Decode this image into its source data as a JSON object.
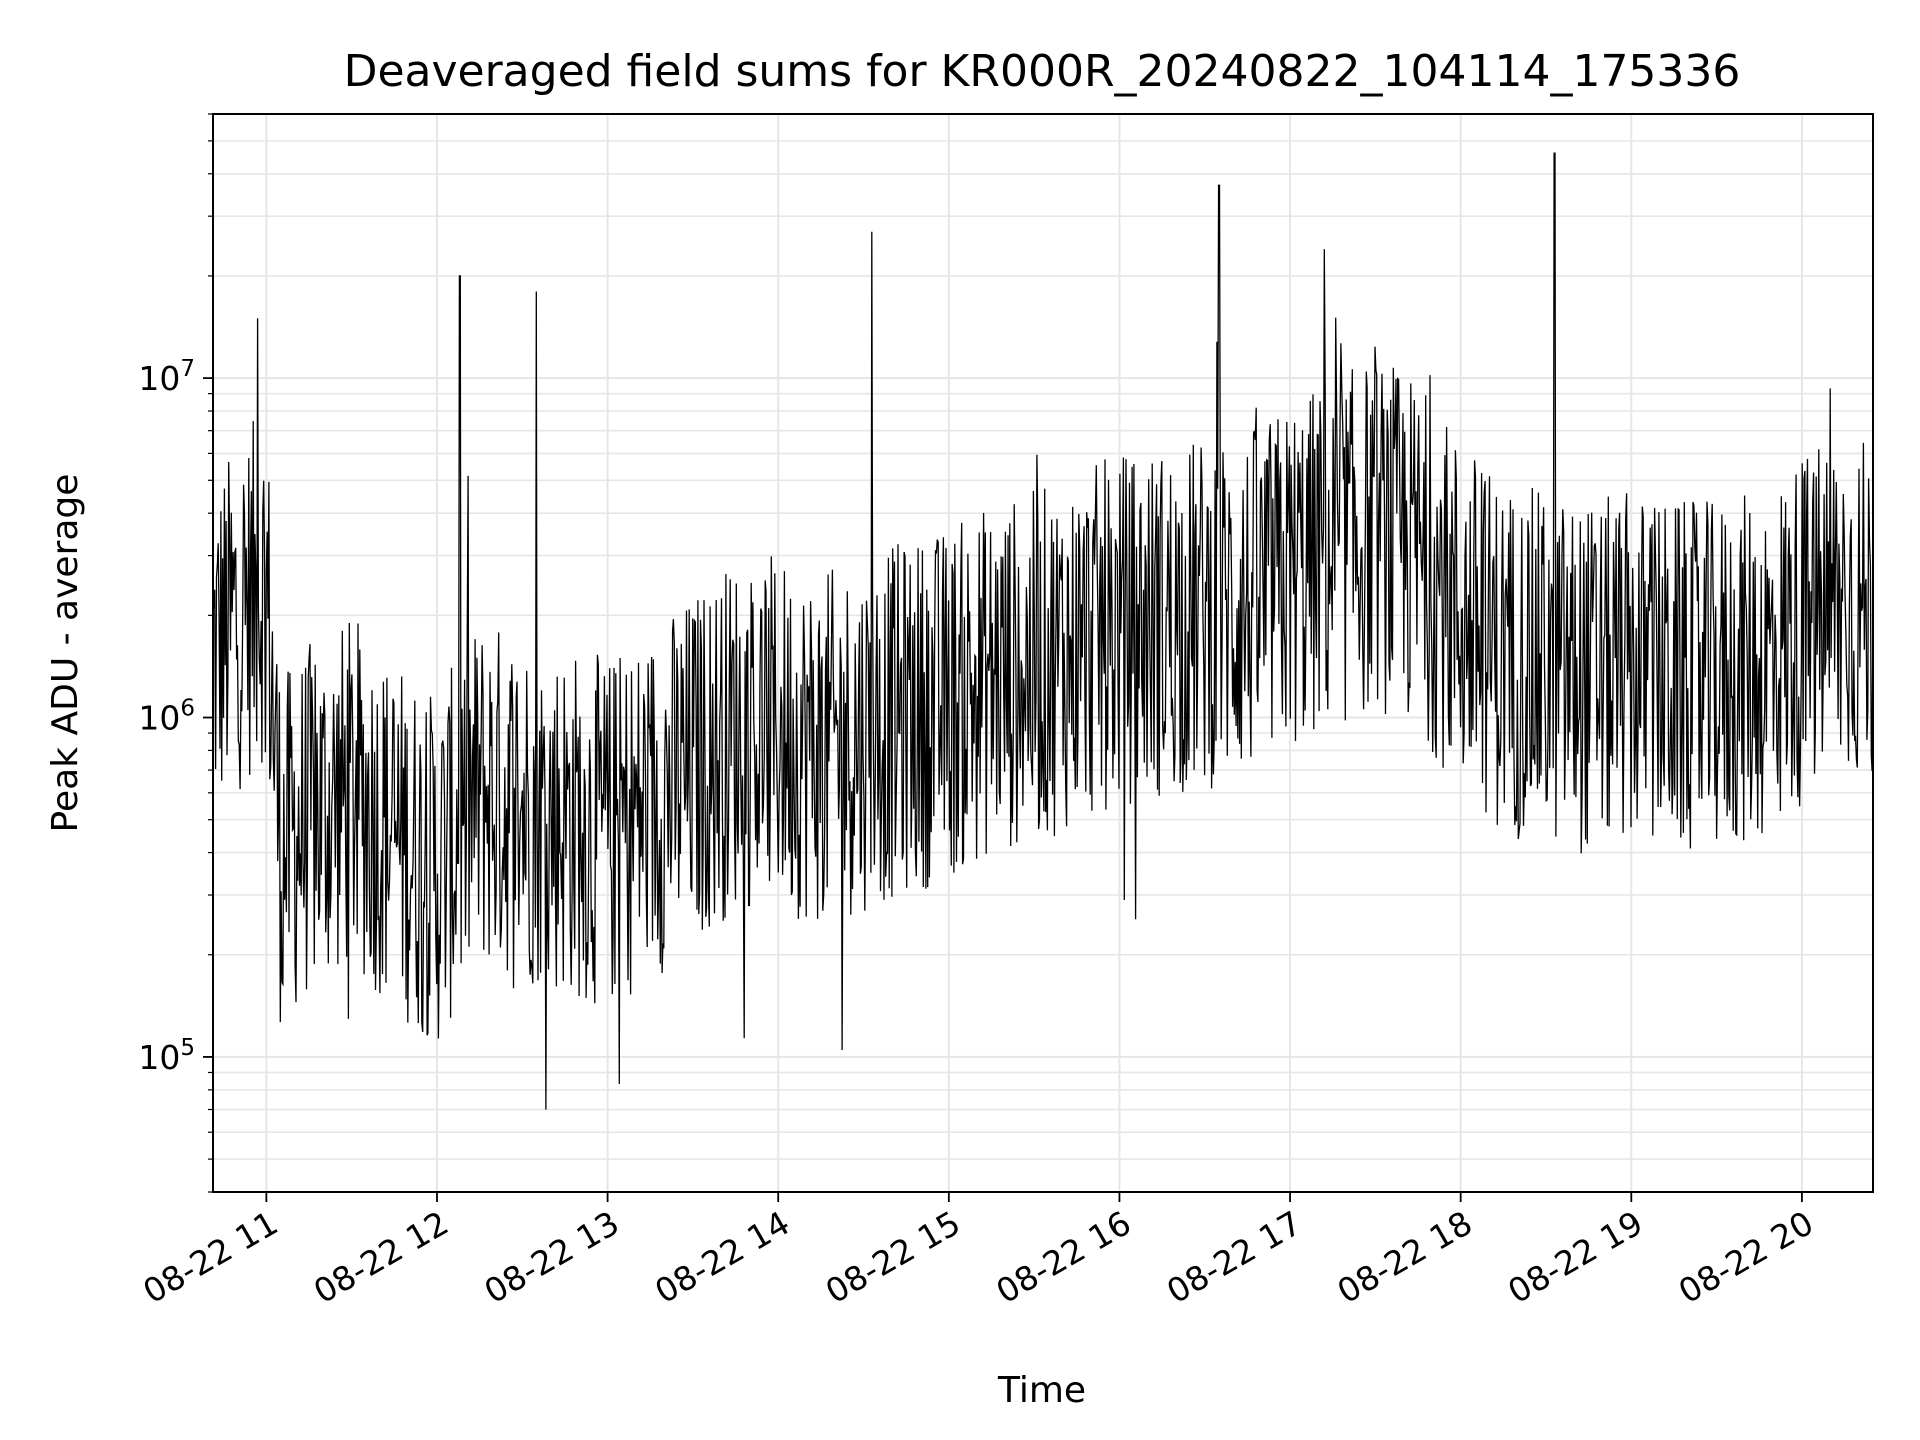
{
  "chart_data": {
    "type": "line",
    "title": "Deaveraged field sums for KR000R_20240822_104114_175336",
    "xlabel": "Time",
    "ylabel": "Peak ADU - average",
    "x_axis": "time",
    "x_range": [
      "2024-08-22 10:41:14",
      "2024-08-22 20:25:00"
    ],
    "x_ticks": [
      {
        "at": "2024-08-22 11:00",
        "label": "08-22 11"
      },
      {
        "at": "2024-08-22 12:00",
        "label": "08-22 12"
      },
      {
        "at": "2024-08-22 13:00",
        "label": "08-22 13"
      },
      {
        "at": "2024-08-22 14:00",
        "label": "08-22 14"
      },
      {
        "at": "2024-08-22 15:00",
        "label": "08-22 15"
      },
      {
        "at": "2024-08-22 16:00",
        "label": "08-22 16"
      },
      {
        "at": "2024-08-22 17:00",
        "label": "08-22 17"
      },
      {
        "at": "2024-08-22 18:00",
        "label": "08-22 18"
      },
      {
        "at": "2024-08-22 19:00",
        "label": "08-22 19"
      },
      {
        "at": "2024-08-22 20:00",
        "label": "08-22 20"
      }
    ],
    "y_scale": "log",
    "ylim": [
      40000,
      60000000
    ],
    "y_ticks": [
      {
        "value": 100000,
        "base": "10",
        "exp": "5"
      },
      {
        "value": 1000000,
        "base": "10",
        "exp": "6"
      },
      {
        "value": 10000000,
        "base": "10",
        "exp": "7"
      }
    ],
    "grid": true,
    "line_color": "#000000",
    "grid_color": "#e6e6e6",
    "series": [
      {
        "points": [
          [
            "2024-08-22 10:41",
            1500000
          ],
          [
            "2024-08-22 10:50",
            2000000
          ],
          [
            "2024-08-22 10:57",
            15000000
          ],
          [
            "2024-08-22 11:00",
            2500000
          ],
          [
            "2024-08-22 11:05",
            400000
          ],
          [
            "2024-08-22 11:15",
            500000
          ],
          [
            "2024-08-22 11:30",
            600000
          ],
          [
            "2024-08-22 11:45",
            450000
          ],
          [
            "2024-08-22 12:00",
            350000
          ],
          [
            "2024-08-22 12:08",
            20000000
          ],
          [
            "2024-08-22 12:15",
            600000
          ],
          [
            "2024-08-22 12:35",
            18000000
          ],
          [
            "2024-08-22 12:45",
            500000
          ],
          [
            "2024-08-22 13:00",
            450000
          ],
          [
            "2024-08-22 13:15",
            550000
          ],
          [
            "2024-08-22 13:30",
            700000
          ],
          [
            "2024-08-22 13:45",
            900000
          ],
          [
            "2024-08-22 14:00",
            900000
          ],
          [
            "2024-08-22 14:15",
            800000
          ],
          [
            "2024-08-22 14:33",
            27000000
          ],
          [
            "2024-08-22 14:45",
            1000000
          ],
          [
            "2024-08-22 15:00",
            1100000
          ],
          [
            "2024-08-22 15:15",
            1300000
          ],
          [
            "2024-08-22 15:30",
            1400000
          ],
          [
            "2024-08-22 15:45",
            1600000
          ],
          [
            "2024-08-22 16:00",
            1800000
          ],
          [
            "2024-08-22 16:35",
            37000000
          ],
          [
            "2024-08-22 16:50",
            2200000
          ],
          [
            "2024-08-22 17:00",
            2600000
          ],
          [
            "2024-08-22 17:12",
            24000000
          ],
          [
            "2024-08-22 17:30",
            3500000
          ],
          [
            "2024-08-22 17:45",
            3000000
          ],
          [
            "2024-08-22 18:00",
            2000000
          ],
          [
            "2024-08-22 18:15",
            1500000
          ],
          [
            "2024-08-22 18:33",
            46000000
          ],
          [
            "2024-08-22 18:45",
            1300000
          ],
          [
            "2024-08-22 19:00",
            1400000
          ],
          [
            "2024-08-22 19:15",
            1300000
          ],
          [
            "2024-08-22 19:30",
            1300000
          ],
          [
            "2024-08-22 19:45",
            1400000
          ],
          [
            "2024-08-22 20:00",
            1800000
          ],
          [
            "2024-08-22 20:15",
            2200000
          ],
          [
            "2024-08-22 20:24",
            2000000
          ]
        ]
      }
    ]
  }
}
